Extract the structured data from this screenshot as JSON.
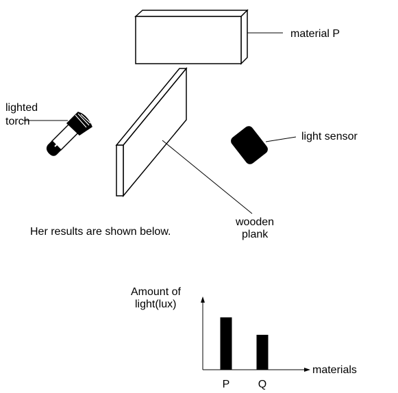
{
  "labels": {
    "material_p": "material P",
    "lighted_torch_line1": "lighted",
    "lighted_torch_line2": "torch",
    "light_sensor": "light sensor",
    "wooden_plank_line1": "wooden",
    "wooden_plank_line2": "plank",
    "results_caption": "Her results are shown below."
  },
  "chart_data": {
    "type": "bar",
    "categories": [
      "P",
      "Q"
    ],
    "values": [
      3,
      2
    ],
    "ylabel_line1": "Amount of",
    "ylabel_line2": "light(lux)",
    "xlabel": "materials",
    "ylim": [
      0,
      4
    ],
    "grid": false,
    "y_ticks_shown": false
  },
  "colors": {
    "ink": "#000000",
    "background": "#ffffff"
  }
}
